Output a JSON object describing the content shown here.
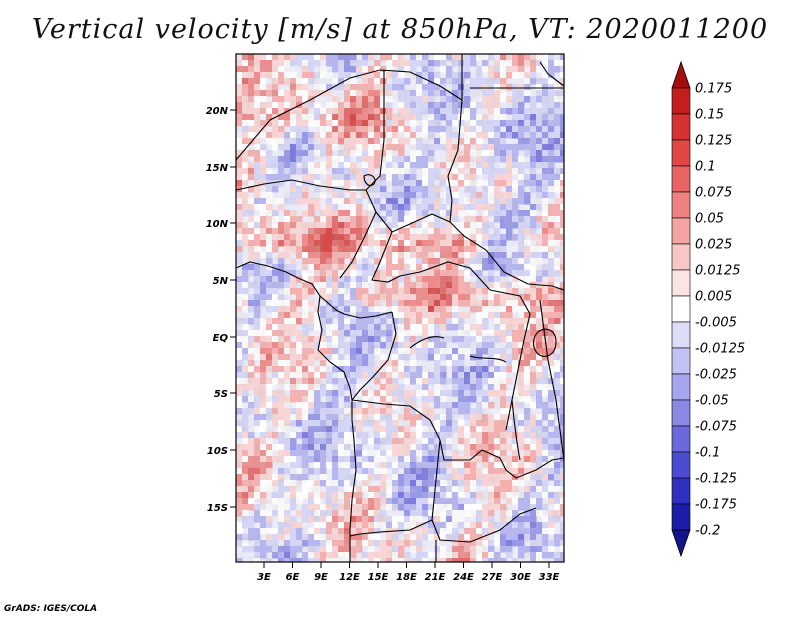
{
  "title": "Vertical velocity [m/s] at 850hPa, VT: 2020011200",
  "credit": "GrADS: IGES/COLA",
  "lat_ticks": [
    "20N",
    "15N",
    "10N",
    "5N",
    "EQ",
    "5S",
    "10S",
    "15S"
  ],
  "lon_ticks": [
    "3E",
    "6E",
    "9E",
    "12E",
    "15E",
    "18E",
    "21E",
    "24E",
    "27E",
    "30E",
    "33E"
  ],
  "colorbar": {
    "levels": [
      "0.175",
      "0.15",
      "0.125",
      "0.1",
      "0.075",
      "0.05",
      "0.025",
      "0.0125",
      "0.005",
      "-0.005",
      "-0.0125",
      "-0.025",
      "-0.05",
      "-0.075",
      "-0.1",
      "-0.125",
      "-0.175",
      "-0.2"
    ],
    "colors": [
      "#a80c0c",
      "#c41e1e",
      "#d63232",
      "#e04848",
      "#e86464",
      "#ee8282",
      "#f4a4a4",
      "#f9c6c6",
      "#fde4e4",
      "#ffffff",
      "#dcdcf8",
      "#c2c2f4",
      "#a6a6ee",
      "#8a8ae6",
      "#6a6adc",
      "#4c4cd0",
      "#3030c0",
      "#1c1ca8",
      "#14148c"
    ]
  },
  "colors": {
    "positive_max": "#c41e1e",
    "negative_max": "#1c1ca8",
    "boundary": "#000000"
  }
}
